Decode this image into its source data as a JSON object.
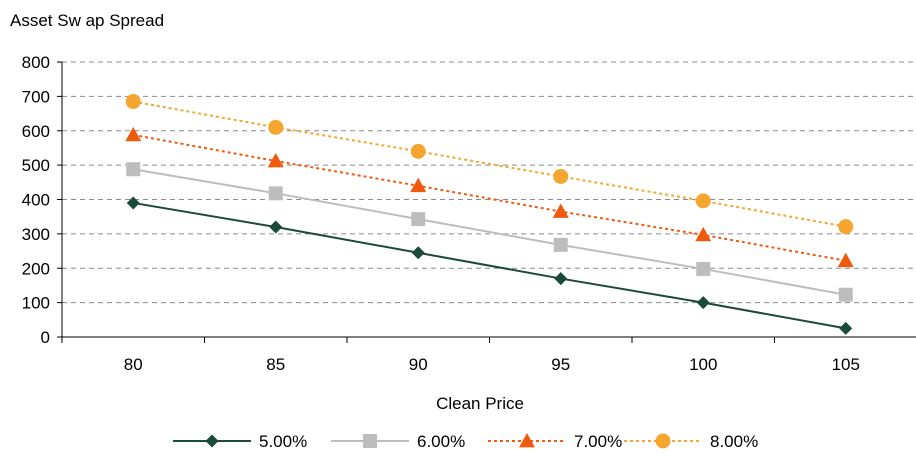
{
  "chart_data": {
    "type": "line",
    "ylabel": "Asset Sw ap Spread",
    "xlabel": "Clean Price",
    "categories": [
      "80",
      "85",
      "90",
      "95",
      "100",
      "105"
    ],
    "ylim": [
      0,
      800
    ],
    "yticks": [
      0,
      100,
      200,
      300,
      400,
      500,
      600,
      700,
      800
    ],
    "grid": true,
    "legend_position": "bottom",
    "series": [
      {
        "name": "5.00%",
        "values": [
          390,
          320,
          245,
          170,
          100,
          25
        ],
        "color": "#1a4a38",
        "marker": "diamond",
        "line": "solid"
      },
      {
        "name": "6.00%",
        "values": [
          488,
          418,
          343,
          268,
          198,
          123
        ],
        "color": "#bdbdbd",
        "marker": "square",
        "line": "solid"
      },
      {
        "name": "7.00%",
        "values": [
          588,
          512,
          440,
          365,
          297,
          222
        ],
        "color": "#f05a0f",
        "marker": "triangle",
        "line": "dotted"
      },
      {
        "name": "8.00%",
        "values": [
          685,
          610,
          540,
          467,
          396,
          321
        ],
        "color": "#f5a631",
        "marker": "circle",
        "line": "dotted"
      }
    ]
  }
}
